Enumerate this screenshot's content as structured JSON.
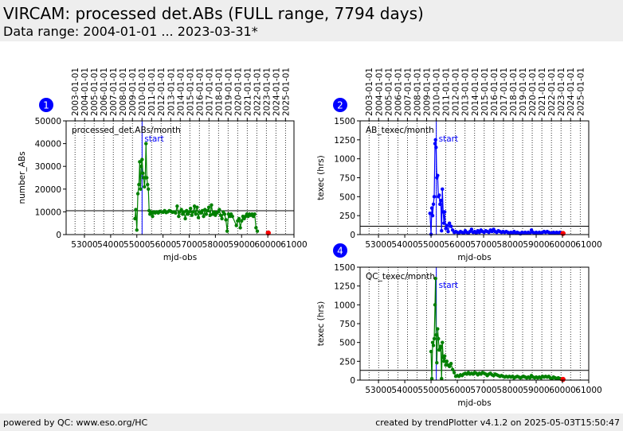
{
  "header": {
    "title": "VIRCAM: processed det.ABs (FULL range, 7794 days)",
    "subtitle": "Data range: 2004-01-01 ... 2023-03-31*"
  },
  "footer": {
    "left": "powered by QC: www.eso.org/HC",
    "right": "created by trendPlotter v4.1.2 on 2025-05-03T15:50:47"
  },
  "colors": {
    "green": "#008000",
    "blue": "#0000ff",
    "red": "#ff0000",
    "badge": "#0000ff",
    "header_bg": "#eeeeee"
  },
  "chart_data": [
    {
      "badge": "1",
      "type": "scatter",
      "label": "processed_det.ABs/month",
      "ylabel": "number_ABs",
      "xlabel": "mjd-obs",
      "xlim": [
        52300,
        61000
      ],
      "ylim": [
        0,
        50000
      ],
      "yticks": [
        0,
        10000,
        20000,
        30000,
        40000,
        50000
      ],
      "xticks": [
        53000,
        54000,
        55000,
        56000,
        57000,
        58000,
        59000,
        60000,
        61000
      ],
      "top_dates": [
        "2003-01-01",
        "2004-01-01",
        "2005-01-01",
        "2006-01-01",
        "2007-01-01",
        "2008-01-01",
        "2009-01-01",
        "2010-01-01",
        "2011-01-01",
        "2012-01-01",
        "2013-01-01",
        "2014-01-01",
        "2015-01-01",
        "2016-01-01",
        "2017-01-01",
        "2018-01-01",
        "2019-01-01",
        "2020-01-01",
        "2021-01-01",
        "2022-01-01",
        "2023-01-01",
        "2024-01-01",
        "2025-01-01"
      ],
      "top_mjd": [
        52640,
        53005,
        53371,
        53736,
        54101,
        54466,
        54832,
        55197,
        55562,
        55927,
        56293,
        56658,
        57023,
        57388,
        57754,
        58119,
        58484,
        58849,
        59215,
        59580,
        59945,
        60310,
        60676
      ],
      "start_mjd": 55200,
      "start_label": "start",
      "hline": 10500,
      "series_color": "green",
      "last_point": {
        "x": 60020,
        "y": 700
      },
      "grid": "vertical-dotted",
      "points": [
        [
          54930,
          7000
        ],
        [
          54960,
          11000
        ],
        [
          55000,
          2000
        ],
        [
          55040,
          18000
        ],
        [
          55080,
          22000
        ],
        [
          55110,
          32000
        ],
        [
          55140,
          20000
        ],
        [
          55170,
          30000
        ],
        [
          55200,
          33000
        ],
        [
          55230,
          27000
        ],
        [
          55260,
          25000
        ],
        [
          55290,
          21000
        ],
        [
          55320,
          25000
        ],
        [
          55350,
          40000
        ],
        [
          55380,
          25000
        ],
        [
          55410,
          22000
        ],
        [
          55440,
          20000
        ],
        [
          55470,
          10500
        ],
        [
          55500,
          9000
        ],
        [
          55530,
          10000
        ],
        [
          55560,
          9500
        ],
        [
          55600,
          8000
        ],
        [
          55650,
          10000
        ],
        [
          55700,
          9500
        ],
        [
          55760,
          10000
        ],
        [
          55820,
          9500
        ],
        [
          55880,
          10200
        ],
        [
          55940,
          10000
        ],
        [
          56000,
          9800
        ],
        [
          56060,
          10500
        ],
        [
          56120,
          9700
        ],
        [
          56180,
          10000
        ],
        [
          56240,
          10500
        ],
        [
          56300,
          10200
        ],
        [
          56360,
          9800
        ],
        [
          56420,
          10000
        ],
        [
          56480,
          9500
        ],
        [
          56540,
          12500
        ],
        [
          56600,
          8000
        ],
        [
          56640,
          10000
        ],
        [
          56700,
          11000
        ],
        [
          56750,
          9000
        ],
        [
          56800,
          10000
        ],
        [
          56850,
          7000
        ],
        [
          56900,
          10500
        ],
        [
          56950,
          9000
        ],
        [
          57000,
          10000
        ],
        [
          57050,
          11500
        ],
        [
          57100,
          8500
        ],
        [
          57150,
          10000
        ],
        [
          57200,
          12500
        ],
        [
          57250,
          9000
        ],
        [
          57300,
          12000
        ],
        [
          57350,
          7500
        ],
        [
          57400,
          10000
        ],
        [
          57450,
          9500
        ],
        [
          57500,
          10500
        ],
        [
          57550,
          8000
        ],
        [
          57600,
          11000
        ],
        [
          57650,
          9000
        ],
        [
          57700,
          10500
        ],
        [
          57750,
          12000
        ],
        [
          57800,
          8500
        ],
        [
          57850,
          13000
        ],
        [
          57900,
          9000
        ],
        [
          57950,
          10000
        ],
        [
          58000,
          8500
        ],
        [
          58050,
          9500
        ],
        [
          58100,
          10000
        ],
        [
          58150,
          11000
        ],
        [
          58200,
          8500
        ],
        [
          58250,
          7000
        ],
        [
          58300,
          10000
        ],
        [
          58350,
          9000
        ],
        [
          58400,
          6500
        ],
        [
          58450,
          1500
        ],
        [
          58500,
          9000
        ],
        [
          58550,
          8000
        ],
        [
          58600,
          9000
        ],
        [
          58650,
          8000
        ],
        [
          58800,
          4000
        ],
        [
          58850,
          6000
        ],
        [
          58900,
          7000
        ],
        [
          58950,
          3000
        ],
        [
          59000,
          6000
        ],
        [
          59050,
          8000
        ],
        [
          59100,
          7000
        ],
        [
          59150,
          8000
        ],
        [
          59200,
          9000
        ],
        [
          59250,
          8000
        ],
        [
          59300,
          9000
        ],
        [
          59350,
          8500
        ],
        [
          59400,
          9000
        ],
        [
          59450,
          8000
        ],
        [
          59500,
          9000
        ],
        [
          59550,
          3000
        ],
        [
          59600,
          1500
        ]
      ]
    },
    {
      "badge": "2",
      "type": "scatter",
      "label": "AB_texec/month",
      "ylabel": "texec (hrs)",
      "xlabel": "mjd-obs",
      "xlim": [
        52300,
        61000
      ],
      "ylim": [
        0,
        1500
      ],
      "yticks": [
        0,
        250,
        500,
        750,
        1000,
        1250,
        1500
      ],
      "xticks": [
        53000,
        54000,
        55000,
        56000,
        57000,
        58000,
        59000,
        60000,
        61000
      ],
      "top_dates": [
        "2003-01-01",
        "2004-01-01",
        "2005-01-01",
        "2006-01-01",
        "2007-01-01",
        "2008-01-01",
        "2009-01-01",
        "2010-01-01",
        "2011-01-01",
        "2012-01-01",
        "2013-01-01",
        "2014-01-01",
        "2015-01-01",
        "2016-01-01",
        "2017-01-01",
        "2018-01-01",
        "2019-01-01",
        "2020-01-01",
        "2021-01-01",
        "2022-01-01",
        "2023-01-01",
        "2024-01-01",
        "2025-01-01"
      ],
      "top_mjd": [
        52640,
        53005,
        53371,
        53736,
        54101,
        54466,
        54832,
        55197,
        55562,
        55927,
        56293,
        56658,
        57023,
        57388,
        57754,
        58119,
        58484,
        58849,
        59215,
        59580,
        59945,
        60310,
        60676
      ],
      "start_mjd": 55200,
      "start_label": "start",
      "hline": 110,
      "series_color": "blue",
      "last_point": {
        "x": 60020,
        "y": 15
      },
      "grid": "vertical-dotted",
      "points": [
        [
          54960,
          280
        ],
        [
          55000,
          5
        ],
        [
          55030,
          350
        ],
        [
          55060,
          250
        ],
        [
          55090,
          400
        ],
        [
          55120,
          500
        ],
        [
          55150,
          1200
        ],
        [
          55170,
          1250
        ],
        [
          55190,
          1150
        ],
        [
          55220,
          750
        ],
        [
          55250,
          780
        ],
        [
          55280,
          500
        ],
        [
          55310,
          520
        ],
        [
          55340,
          400
        ],
        [
          55370,
          450
        ],
        [
          55400,
          50
        ],
        [
          55430,
          600
        ],
        [
          55460,
          300
        ],
        [
          55490,
          150
        ],
        [
          55520,
          300
        ],
        [
          55560,
          80
        ],
        [
          55600,
          120
        ],
        [
          55650,
          40
        ],
        [
          55700,
          150
        ],
        [
          55760,
          110
        ],
        [
          55820,
          60
        ],
        [
          55880,
          30
        ],
        [
          55940,
          40
        ],
        [
          56000,
          30
        ],
        [
          56060,
          20
        ],
        [
          56120,
          40
        ],
        [
          56180,
          30
        ],
        [
          56240,
          20
        ],
        [
          56300,
          50
        ],
        [
          56360,
          30
        ],
        [
          56420,
          20
        ],
        [
          56480,
          40
        ],
        [
          56540,
          70
        ],
        [
          56600,
          30
        ],
        [
          56660,
          40
        ],
        [
          56720,
          20
        ],
        [
          56780,
          50
        ],
        [
          56840,
          30
        ],
        [
          56900,
          60
        ],
        [
          56960,
          40
        ],
        [
          57020,
          30
        ],
        [
          57080,
          50
        ],
        [
          57140,
          40
        ],
        [
          57200,
          30
        ],
        [
          57260,
          60
        ],
        [
          57320,
          40
        ],
        [
          57380,
          70
        ],
        [
          57440,
          40
        ],
        [
          57500,
          30
        ],
        [
          57560,
          50
        ],
        [
          57620,
          40
        ],
        [
          57680,
          30
        ],
        [
          57740,
          40
        ],
        [
          57800,
          30
        ],
        [
          57860,
          40
        ],
        [
          57920,
          30
        ],
        [
          57980,
          20
        ],
        [
          58040,
          30
        ],
        [
          58100,
          20
        ],
        [
          58160,
          40
        ],
        [
          58220,
          20
        ],
        [
          58280,
          30
        ],
        [
          58340,
          20
        ],
        [
          58400,
          10
        ],
        [
          58460,
          30
        ],
        [
          58520,
          20
        ],
        [
          58580,
          30
        ],
        [
          58640,
          20
        ],
        [
          58700,
          30
        ],
        [
          58760,
          20
        ],
        [
          58820,
          60
        ],
        [
          58880,
          30
        ],
        [
          58940,
          20
        ],
        [
          59000,
          30
        ],
        [
          59060,
          20
        ],
        [
          59120,
          30
        ],
        [
          59180,
          20
        ],
        [
          59240,
          30
        ],
        [
          59300,
          40
        ],
        [
          59360,
          30
        ],
        [
          59420,
          40
        ],
        [
          59480,
          30
        ],
        [
          59540,
          20
        ],
        [
          59600,
          20
        ],
        [
          59660,
          30
        ],
        [
          59720,
          20
        ],
        [
          59780,
          30
        ],
        [
          59840,
          20
        ],
        [
          59900,
          30
        ],
        [
          59960,
          20
        ]
      ]
    },
    {
      "badge": "4",
      "type": "scatter",
      "label": "QC_texec/month",
      "ylabel": "texec (hrs)",
      "xlabel": "mjd-obs",
      "xlim": [
        52300,
        61000
      ],
      "ylim": [
        0,
        1500
      ],
      "yticks": [
        0,
        250,
        500,
        750,
        1000,
        1250,
        1500
      ],
      "xticks": [
        53000,
        54000,
        55000,
        56000,
        57000,
        58000,
        59000,
        60000,
        61000
      ],
      "top_dates": [],
      "top_mjd": [
        52640,
        53005,
        53371,
        53736,
        54101,
        54466,
        54832,
        55197,
        55562,
        55927,
        56293,
        56658,
        57023,
        57388,
        57754,
        58119,
        58484,
        58849,
        59215,
        59580,
        59945,
        60310,
        60676
      ],
      "start_mjd": 55200,
      "start_label": "start",
      "hline": 130,
      "series_color": "green",
      "last_point": {
        "x": 60020,
        "y": 10
      },
      "grid": "vertical-dotted",
      "points": [
        [
          55000,
          380
        ],
        [
          55030,
          20
        ],
        [
          55060,
          500
        ],
        [
          55090,
          460
        ],
        [
          55120,
          550
        ],
        [
          55150,
          1000
        ],
        [
          55170,
          1350
        ],
        [
          55190,
          600
        ],
        [
          55220,
          230
        ],
        [
          55250,
          680
        ],
        [
          55280,
          550
        ],
        [
          55310,
          400
        ],
        [
          55340,
          420
        ],
        [
          55370,
          450
        ],
        [
          55400,
          20
        ],
        [
          55430,
          500
        ],
        [
          55460,
          300
        ],
        [
          55490,
          250
        ],
        [
          55520,
          320
        ],
        [
          55560,
          200
        ],
        [
          55600,
          250
        ],
        [
          55650,
          200
        ],
        [
          55700,
          180
        ],
        [
          55760,
          220
        ],
        [
          55820,
          140
        ],
        [
          55880,
          100
        ],
        [
          55940,
          50
        ],
        [
          56000,
          60
        ],
        [
          56060,
          50
        ],
        [
          56120,
          70
        ],
        [
          56180,
          60
        ],
        [
          56240,
          80
        ],
        [
          56300,
          90
        ],
        [
          56360,
          80
        ],
        [
          56420,
          100
        ],
        [
          56480,
          80
        ],
        [
          56540,
          90
        ],
        [
          56600,
          80
        ],
        [
          56660,
          100
        ],
        [
          56720,
          90
        ],
        [
          56780,
          70
        ],
        [
          56840,
          90
        ],
        [
          56900,
          80
        ],
        [
          56960,
          100
        ],
        [
          57020,
          90
        ],
        [
          57080,
          80
        ],
        [
          57140,
          60
        ],
        [
          57200,
          80
        ],
        [
          57260,
          90
        ],
        [
          57320,
          70
        ],
        [
          57380,
          60
        ],
        [
          57440,
          80
        ],
        [
          57500,
          70
        ],
        [
          57560,
          60
        ],
        [
          57620,
          50
        ],
        [
          57680,
          60
        ],
        [
          57740,
          50
        ],
        [
          57800,
          40
        ],
        [
          57860,
          50
        ],
        [
          57920,
          40
        ],
        [
          57980,
          50
        ],
        [
          58040,
          40
        ],
        [
          58100,
          50
        ],
        [
          58160,
          30
        ],
        [
          58220,
          40
        ],
        [
          58280,
          50
        ],
        [
          58340,
          40
        ],
        [
          58400,
          30
        ],
        [
          58460,
          40
        ],
        [
          58520,
          50
        ],
        [
          58580,
          40
        ],
        [
          58640,
          30
        ],
        [
          58700,
          40
        ],
        [
          58760,
          30
        ],
        [
          58820,
          60
        ],
        [
          58880,
          40
        ],
        [
          58940,
          30
        ],
        [
          59000,
          40
        ],
        [
          59060,
          30
        ],
        [
          59120,
          40
        ],
        [
          59180,
          30
        ],
        [
          59240,
          50
        ],
        [
          59300,
          40
        ],
        [
          59360,
          50
        ],
        [
          59420,
          40
        ],
        [
          59480,
          50
        ],
        [
          59540,
          30
        ],
        [
          59600,
          20
        ],
        [
          59660,
          40
        ],
        [
          59720,
          30
        ],
        [
          59780,
          20
        ],
        [
          59840,
          30
        ],
        [
          59900,
          20
        ],
        [
          59960,
          10
        ]
      ]
    }
  ]
}
